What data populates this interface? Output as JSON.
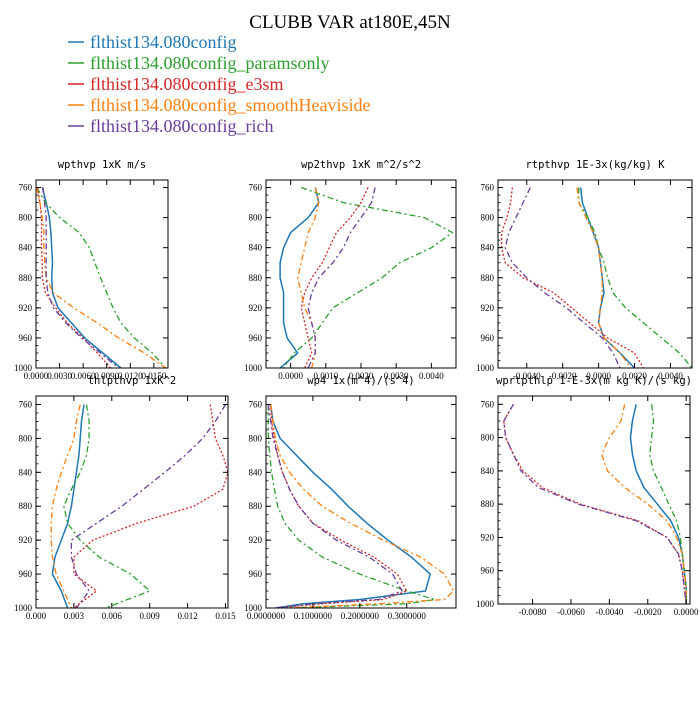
{
  "figure": {
    "title": "CLUBB VAR at180E,45N",
    "legend": [
      {
        "label": "flthist134.080config",
        "color": "#1f77b4"
      },
      {
        "label": "flthist134.080config_paramsonly",
        "color": "#2ca02c"
      },
      {
        "label": "flthist134.080config_e3sm",
        "color": "#d62728"
      },
      {
        "label": "flthist134.080config_smoothHeaviside",
        "color": "#ff7f0e"
      },
      {
        "label": "flthist134.080config_rich",
        "color": "#6a3d9a"
      }
    ]
  },
  "chart_data": [
    {
      "type": "line",
      "title": "wpthvp  1xK m/s",
      "xlim": [
        0,
        0.0168
      ],
      "ylim": [
        750,
        1000
      ],
      "y_reversed": true,
      "xticks": [
        0,
        0.003,
        0.006,
        0.009,
        0.012,
        0.015
      ],
      "xtick_labels": [
        "0.0000",
        "0.0030",
        "0.0060",
        "0.0090",
        "0.0120",
        "0.0150"
      ],
      "yticks": [
        760,
        800,
        840,
        880,
        920,
        960,
        1000
      ],
      "y": [
        760,
        780,
        800,
        820,
        840,
        860,
        880,
        900,
        920,
        940,
        960,
        980,
        1000
      ],
      "series": [
        {
          "x": [
            0.0008,
            0.0013,
            0.0017,
            0.0019,
            0.002,
            0.0021,
            0.002,
            0.0021,
            0.0028,
            0.0045,
            0.0062,
            0.0085,
            0.0108
          ]
        },
        {
          "x": [
            0.0001,
            0.0012,
            0.003,
            0.0055,
            0.0068,
            0.0075,
            0.0082,
            0.009,
            0.0098,
            0.0108,
            0.0125,
            0.0148,
            0.0165
          ]
        },
        {
          "x": [
            0.0002,
            0.0005,
            0.0007,
            0.0007,
            0.0007,
            0.0008,
            0.0008,
            0.0012,
            0.0025,
            0.004,
            0.006,
            0.0078,
            0.0095
          ]
        },
        {
          "x": [
            0.0001,
            0.0005,
            0.0008,
            0.001,
            0.001,
            0.0011,
            0.0013,
            0.0022,
            0.0048,
            0.0078,
            0.0105,
            0.0138,
            0.0165
          ]
        },
        {
          "x": [
            0.0009,
            0.0011,
            0.0013,
            0.0013,
            0.0013,
            0.0013,
            0.0013,
            0.0015,
            0.0022,
            0.0038,
            0.0058,
            0.0082,
            0.0105
          ]
        }
      ]
    },
    {
      "type": "line",
      "title": "wp2thvp  1xK m^2/s^2",
      "xlim": [
        -0.0007,
        0.0047
      ],
      "ylim": [
        750,
        1000
      ],
      "y_reversed": true,
      "xticks": [
        0,
        0.001,
        0.002,
        0.003,
        0.004
      ],
      "xtick_labels": [
        "0.0000",
        "0.0010",
        "0.0020",
        "0.0030",
        "0.0040"
      ],
      "yticks": [
        760,
        800,
        840,
        880,
        920,
        960,
        1000
      ],
      "y": [
        760,
        780,
        800,
        820,
        840,
        860,
        880,
        900,
        920,
        940,
        960,
        980,
        1000
      ],
      "series": [
        {
          "x": [
            0.0007,
            0.0008,
            0.0005,
            0.0,
            -0.0002,
            -0.0003,
            -0.0003,
            -0.0002,
            -0.0002,
            -0.0002,
            -0.0001,
            0.0002,
            -0.0003
          ]
        },
        {
          "x": [
            0.0003,
            0.0015,
            0.0038,
            0.0046,
            0.004,
            0.0031,
            0.0026,
            0.0019,
            0.0012,
            0.0009,
            0.0006,
            0.0001,
            -0.0002
          ]
        },
        {
          "x": [
            0.0022,
            0.002,
            0.0017,
            0.0013,
            0.0011,
            0.0009,
            0.0006,
            0.0004,
            0.0003,
            0.0004,
            0.0005,
            0.0006,
            0.0004
          ]
        },
        {
          "x": [
            0.0007,
            0.0008,
            0.0007,
            0.0005,
            0.0004,
            0.0003,
            0.0002,
            0.0003,
            0.0004,
            0.0006,
            0.0007,
            0.0007,
            0.0006
          ]
        },
        {
          "x": [
            0.0024,
            0.0023,
            0.002,
            0.0017,
            0.0015,
            0.0012,
            0.0008,
            0.0006,
            0.0005,
            0.0006,
            0.0007,
            0.0007,
            0.0005
          ]
        }
      ]
    },
    {
      "type": "line",
      "title": "rtpthvp  1E-3x(kg/kg) K",
      "xlim": [
        -0.0056,
        0.0052
      ],
      "ylim": [
        750,
        1000
      ],
      "y_reversed": true,
      "xticks": [
        -0.004,
        -0.002,
        0,
        0.002,
        0.004
      ],
      "xtick_labels": [
        "-0.0040",
        "-0.0020",
        "0.0000",
        "0.0020",
        "0.0040"
      ],
      "yticks": [
        760,
        800,
        840,
        880,
        920,
        960,
        1000
      ],
      "y": [
        760,
        780,
        800,
        820,
        840,
        860,
        880,
        900,
        920,
        940,
        960,
        980,
        1000
      ],
      "series": [
        {
          "x": [
            -0.001,
            -0.0009,
            -0.0006,
            -0.0003,
            0.0,
            0.0001,
            0.0002,
            0.0003,
            0.0001,
            0.0,
            0.0003,
            0.0012,
            0.002
          ]
        },
        {
          "x": [
            -0.0011,
            -0.0011,
            -0.0006,
            -0.0002,
            0.0,
            0.0003,
            0.0005,
            0.0008,
            0.0015,
            0.0025,
            0.0035,
            0.0045,
            0.0052
          ]
        },
        {
          "x": [
            -0.0048,
            -0.0049,
            -0.0051,
            -0.0054,
            -0.0054,
            -0.0052,
            -0.0042,
            -0.0025,
            -0.0015,
            -0.0005,
            0.0005,
            0.002,
            0.0025
          ]
        },
        {
          "x": [
            -0.0012,
            -0.0011,
            -0.0007,
            -0.0003,
            0.0,
            0.0001,
            0.0002,
            0.0002,
            0.0001,
            0.0,
            0.0003,
            0.0012,
            0.0018
          ]
        },
        {
          "x": [
            -0.0038,
            -0.0042,
            -0.0046,
            -0.005,
            -0.0052,
            -0.0048,
            -0.004,
            -0.003,
            -0.0018,
            -0.0008,
            0.0002,
            0.0008,
            0.0012
          ]
        }
      ]
    },
    {
      "type": "line",
      "title": "thlpthvp  1xK^2",
      "xlim": [
        0,
        0.0152
      ],
      "ylim": [
        750,
        1000
      ],
      "y_reversed": true,
      "xticks": [
        0,
        0.003,
        0.006,
        0.009,
        0.012,
        0.015
      ],
      "xtick_labels": [
        "0.000",
        "0.003",
        "0.006",
        "0.009",
        "0.012",
        "0.015"
      ],
      "yticks": [
        760,
        800,
        840,
        880,
        920,
        960,
        1000
      ],
      "y": [
        760,
        780,
        800,
        820,
        840,
        860,
        880,
        900,
        920,
        940,
        960,
        980,
        1000
      ],
      "series": [
        {
          "x": [
            0.0038,
            0.0036,
            0.0035,
            0.0034,
            0.0032,
            0.003,
            0.0028,
            0.0025,
            0.002,
            0.0015,
            0.0013,
            0.002,
            0.0025
          ]
        },
        {
          "x": [
            0.004,
            0.0042,
            0.0042,
            0.004,
            0.0035,
            0.0028,
            0.0022,
            0.0025,
            0.0035,
            0.005,
            0.0075,
            0.009,
            0.0055
          ]
        },
        {
          "x": [
            0.0138,
            0.014,
            0.0142,
            0.0148,
            0.0152,
            0.0148,
            0.0125,
            0.008,
            0.0045,
            0.003,
            0.003,
            0.0048,
            0.003
          ]
        },
        {
          "x": [
            0.0035,
            0.0032,
            0.003,
            0.0025,
            0.002,
            0.0016,
            0.0013,
            0.0012,
            0.0012,
            0.0013,
            0.0016,
            0.0022,
            0.0028
          ]
        },
        {
          "x": [
            0.015,
            0.0142,
            0.0132,
            0.0118,
            0.0102,
            0.0085,
            0.0068,
            0.0048,
            0.0028,
            0.0028,
            0.0032,
            0.0042,
            0.0032
          ]
        }
      ]
    },
    {
      "type": "line",
      "title": "wp4  1x(m^4)/(s^4)",
      "xlim": [
        0,
        0.405
      ],
      "ylim": [
        750,
        1000
      ],
      "y_reversed": true,
      "xticks": [
        0,
        0.1,
        0.2,
        0.3
      ],
      "xtick_labels": [
        "0.0000000",
        "0.1000000",
        "0.2000000",
        "0.3000000"
      ],
      "yticks": [
        760,
        800,
        840,
        880,
        920,
        960,
        1000
      ],
      "y": [
        760,
        780,
        800,
        820,
        840,
        860,
        880,
        900,
        920,
        940,
        960,
        980,
        990,
        995,
        1000
      ],
      "series": [
        {
          "x": [
            0.01,
            0.015,
            0.03,
            0.065,
            0.1,
            0.14,
            0.175,
            0.215,
            0.26,
            0.31,
            0.35,
            0.34,
            0.2,
            0.08,
            0.02
          ]
        },
        {
          "x": [
            0.005,
            0.005,
            0.005,
            0.008,
            0.012,
            0.018,
            0.025,
            0.04,
            0.07,
            0.12,
            0.2,
            0.3,
            0.36,
            0.3,
            0.05
          ]
        },
        {
          "x": [
            0.01,
            0.012,
            0.018,
            0.025,
            0.035,
            0.05,
            0.07,
            0.1,
            0.16,
            0.23,
            0.28,
            0.3,
            0.25,
            0.12,
            0.02
          ]
        },
        {
          "x": [
            0.01,
            0.015,
            0.02,
            0.03,
            0.05,
            0.08,
            0.12,
            0.18,
            0.25,
            0.33,
            0.38,
            0.4,
            0.38,
            0.24,
            0.05
          ]
        },
        {
          "x": [
            0.005,
            0.01,
            0.015,
            0.025,
            0.035,
            0.05,
            0.07,
            0.1,
            0.15,
            0.22,
            0.27,
            0.29,
            0.24,
            0.1,
            0.02
          ]
        }
      ]
    },
    {
      "type": "line",
      "title": "wprtpthlp  1-E-3x(m kg K)/(s kg)",
      "xlim": [
        -0.0098,
        0.0002
      ],
      "ylim": [
        750,
        1000
      ],
      "y_reversed": true,
      "xticks": [
        -0.008,
        -0.006,
        -0.004,
        -0.002,
        0
      ],
      "xtick_labels": [
        "-0.0080",
        "-0.0060",
        "-0.0040",
        "-0.0020",
        "0.0000"
      ],
      "yticks": [
        760,
        800,
        840,
        880,
        920,
        960,
        1000
      ],
      "y": [
        760,
        780,
        800,
        820,
        840,
        860,
        880,
        900,
        920,
        940,
        960,
        980,
        1000
      ],
      "series": [
        {
          "x": [
            -0.0026,
            -0.0028,
            -0.0029,
            -0.0028,
            -0.0026,
            -0.0022,
            -0.0015,
            -0.0008,
            -0.0004,
            -0.0002,
            -0.0001,
            0.0,
            0.0
          ]
        },
        {
          "x": [
            -0.0018,
            -0.0017,
            -0.0018,
            -0.0019,
            -0.0017,
            -0.0013,
            -0.0009,
            -0.0005,
            -0.0003,
            -0.0002,
            -0.0001,
            0.0,
            0.0
          ]
        },
        {
          "x": [
            -0.009,
            -0.0095,
            -0.0094,
            -0.009,
            -0.0085,
            -0.0075,
            -0.0055,
            -0.0025,
            -0.001,
            -0.0004,
            -0.0002,
            -0.0001,
            0.0
          ]
        },
        {
          "x": [
            -0.0032,
            -0.0034,
            -0.004,
            -0.0044,
            -0.0041,
            -0.0032,
            -0.002,
            -0.001,
            -0.0005,
            -0.0002,
            -0.0001,
            0.0,
            0.0
          ]
        },
        {
          "x": [
            -0.009,
            -0.0095,
            -0.0094,
            -0.009,
            -0.0086,
            -0.0077,
            -0.0056,
            -0.0026,
            -0.001,
            -0.0004,
            -0.0002,
            -0.0001,
            0.0
          ]
        }
      ]
    }
  ]
}
